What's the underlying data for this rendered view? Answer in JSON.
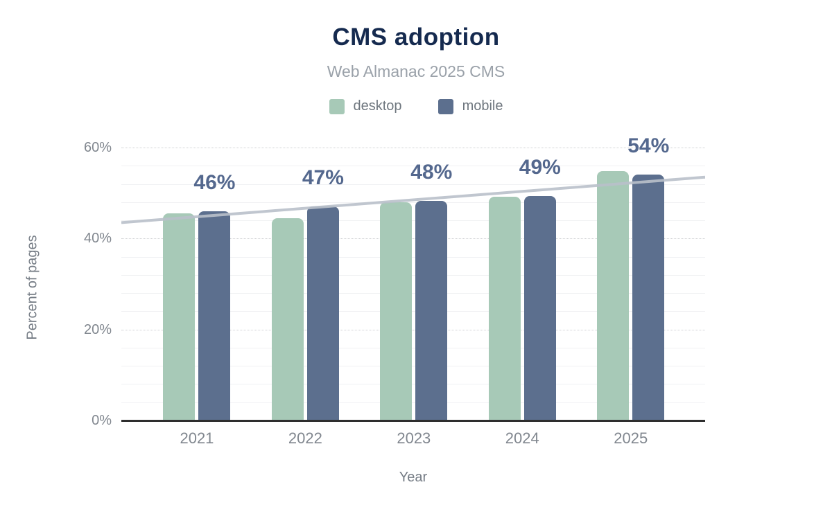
{
  "chart_data": {
    "type": "bar",
    "title": "CMS adoption",
    "subtitle": "Web Almanac 2025 CMS",
    "xlabel": "Year",
    "ylabel": "Percent of pages",
    "categories": [
      "2021",
      "2022",
      "2023",
      "2024",
      "2025"
    ],
    "series": [
      {
        "name": "desktop",
        "color": "#a7c9b7",
        "values": [
          45.5,
          44.5,
          47.9,
          49.2,
          54.8
        ]
      },
      {
        "name": "mobile",
        "color": "#5c6f8e",
        "values": [
          46,
          47,
          48.3,
          49.4,
          54
        ]
      }
    ],
    "annotations": [
      "46%",
      "47%",
      "48%",
      "49%",
      "54%"
    ],
    "trendline": {
      "start": 43.5,
      "end": 53.5,
      "color": "#b9c0ca"
    },
    "ylim": [
      0,
      60
    ],
    "yticks": [
      0,
      20,
      40,
      60
    ],
    "ytick_labels": [
      "0%",
      "20%",
      "40%",
      "60%"
    ],
    "minor_grid_step": 4,
    "grid": true,
    "legend_position": "top"
  },
  "colors": {
    "title": "#152a4f",
    "subtitle": "#9aa1a9",
    "annotation": "#54688e",
    "axis_text": "#81878f",
    "axis_line": "#2e2e2e"
  }
}
